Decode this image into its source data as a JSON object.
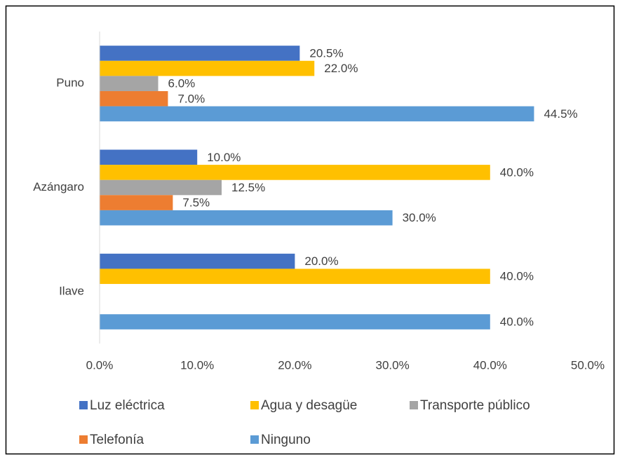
{
  "chart_data": {
    "type": "hbar",
    "categories": [
      "Puno",
      "Azángaro",
      "Ilave"
    ],
    "series": [
      {
        "name": "Luz eléctrica",
        "color": "#4472c4",
        "values": [
          20.5,
          10.0,
          20.0
        ],
        "value_labels": [
          "20.5%",
          "10.0%",
          "20.0%"
        ]
      },
      {
        "name": "Agua y desagüe",
        "color": "#ffc000",
        "values": [
          22.0,
          40.0,
          40.0
        ],
        "value_labels": [
          "22.0%",
          "40.0%",
          "40.0%"
        ]
      },
      {
        "name": "Transporte público",
        "color": "#a5a5a5",
        "values": [
          6.0,
          12.5,
          null
        ],
        "value_labels": [
          "6.0%",
          "12.5%",
          null
        ]
      },
      {
        "name": "Telefonía",
        "color": "#ed7d31",
        "values": [
          7.0,
          7.5,
          null
        ],
        "value_labels": [
          "7.0%",
          "7.5%",
          null
        ]
      },
      {
        "name": "Ninguno",
        "color": "#5b9bd5",
        "values": [
          44.5,
          30.0,
          40.0
        ],
        "value_labels": [
          "44.5%",
          "30.0%",
          "40.0%"
        ]
      }
    ],
    "xlim": [
      0,
      50
    ],
    "xticks": [
      {
        "value": 0,
        "label": "0.0%"
      },
      {
        "value": 10,
        "label": "10.0%"
      },
      {
        "value": 20,
        "label": "20.0%"
      },
      {
        "value": 30,
        "label": "30.0%"
      },
      {
        "value": 40,
        "label": "40.0%"
      },
      {
        "value": 50,
        "label": "50.0%"
      }
    ],
    "grid": false,
    "legend": "bottom"
  }
}
